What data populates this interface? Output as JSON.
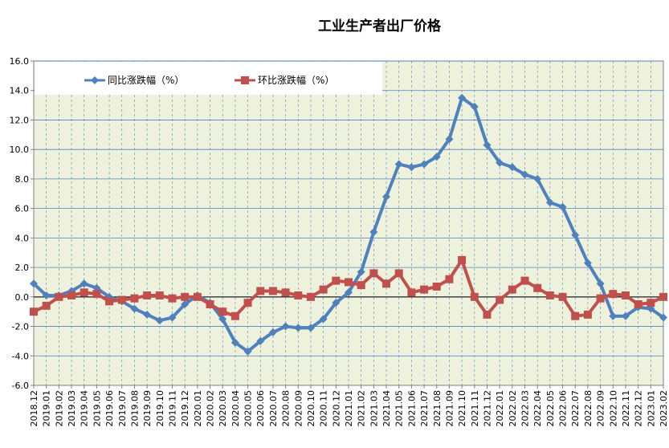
{
  "chart_data": {
    "type": "line",
    "title": "工业生产者出厂价格",
    "xlabel": "",
    "ylabel": "",
    "ylim": [
      -6.0,
      16.0
    ],
    "y_ticks": [
      "16.0",
      "14.0",
      "12.0",
      "10.0",
      "8.0",
      "6.0",
      "4.0",
      "2.0",
      "0.0",
      "-2.0",
      "-4.0",
      "-6.0"
    ],
    "grid": true,
    "legend_position": "top-left",
    "categories": [
      "2018.12",
      "2019.01",
      "2019.02",
      "2019.03",
      "2019.04",
      "2019.05",
      "2019.06",
      "2019.07",
      "2019.08",
      "2019.09",
      "2019.10",
      "2019.11",
      "2019.12",
      "2020.01",
      "2020.02",
      "2020.03",
      "2020.04",
      "2020.05",
      "2020.06",
      "2020.07",
      "2020.08",
      "2020.09",
      "2020.10",
      "2020.11",
      "2020.12",
      "2021.01",
      "2021.02",
      "2021.03",
      "2021.04",
      "2021.05",
      "2021.06",
      "2021.07",
      "2021.08",
      "2021.09",
      "2021.10",
      "2021.11",
      "2021.12",
      "2022.01",
      "2022.02",
      "2022.03",
      "2022.04",
      "2022.05",
      "2022.06",
      "2022.07",
      "2022.08",
      "2022.09",
      "2022.10",
      "2022.11",
      "2022.12",
      "2023.01",
      "2023.02"
    ],
    "series": [
      {
        "name": "同比涨跌幅（%）",
        "color": "#4F81BD",
        "marker": "diamond",
        "values": [
          0.9,
          0.1,
          0.1,
          0.4,
          0.9,
          0.6,
          0.0,
          -0.3,
          -0.8,
          -1.2,
          -1.6,
          -1.4,
          -0.5,
          0.1,
          -0.4,
          -1.5,
          -3.1,
          -3.7,
          -3.0,
          -2.4,
          -2.0,
          -2.1,
          -2.1,
          -1.5,
          -0.4,
          0.3,
          1.7,
          4.4,
          6.8,
          9.0,
          8.8,
          9.0,
          9.5,
          10.7,
          13.5,
          12.9,
          10.3,
          9.1,
          8.8,
          8.3,
          8.0,
          6.4,
          6.1,
          4.2,
          2.3,
          0.9,
          -1.3,
          -1.3,
          -0.7,
          -0.8,
          -1.4
        ]
      },
      {
        "name": "环比涨跌幅（%）",
        "color": "#C0504D",
        "marker": "square",
        "values": [
          -1.0,
          -0.6,
          0.0,
          0.1,
          0.3,
          0.2,
          -0.3,
          -0.2,
          -0.1,
          0.1,
          0.1,
          -0.1,
          0.0,
          0.0,
          -0.5,
          -1.0,
          -1.3,
          -0.4,
          0.4,
          0.4,
          0.3,
          0.1,
          0.0,
          0.5,
          1.1,
          1.0,
          0.8,
          1.6,
          0.9,
          1.6,
          0.3,
          0.5,
          0.7,
          1.2,
          2.5,
          0.0,
          -1.2,
          -0.2,
          0.5,
          1.1,
          0.6,
          0.1,
          0.0,
          -1.3,
          -1.2,
          -0.1,
          0.2,
          0.1,
          -0.5,
          -0.4,
          0.0
        ]
      }
    ]
  }
}
